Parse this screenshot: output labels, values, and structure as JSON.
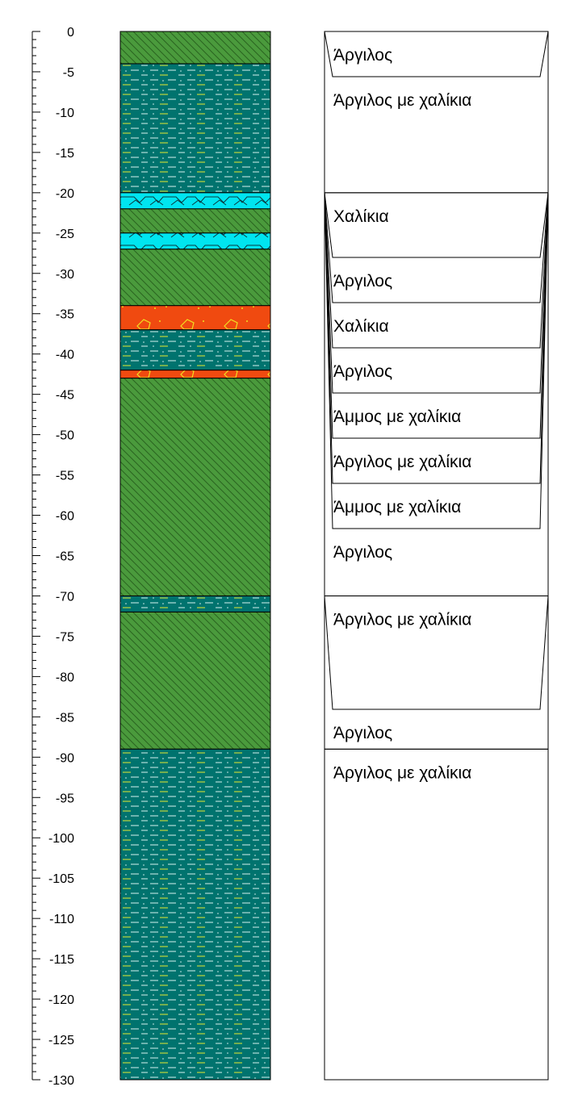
{
  "chart_data": {
    "type": "borehole-log",
    "depth_axis": {
      "min": -130,
      "max": 0,
      "major_step": 5,
      "minor_step": 1
    },
    "layers": [
      {
        "top": 0,
        "bottom": -4,
        "pattern": "clay"
      },
      {
        "top": -4,
        "bottom": -20,
        "pattern": "clay-gravel"
      },
      {
        "top": -20,
        "bottom": -22,
        "pattern": "gravel"
      },
      {
        "top": -22,
        "bottom": -25,
        "pattern": "clay"
      },
      {
        "top": -25,
        "bottom": -27,
        "pattern": "gravel"
      },
      {
        "top": -27,
        "bottom": -34,
        "pattern": "clay"
      },
      {
        "top": -34,
        "bottom": -37,
        "pattern": "sand-gravel"
      },
      {
        "top": -37,
        "bottom": -42,
        "pattern": "clay-gravel"
      },
      {
        "top": -42,
        "bottom": -43,
        "pattern": "sand-gravel"
      },
      {
        "top": -43,
        "bottom": -70,
        "pattern": "clay"
      },
      {
        "top": -70,
        "bottom": -72,
        "pattern": "clay-gravel"
      },
      {
        "top": -72,
        "bottom": -89,
        "pattern": "clay"
      },
      {
        "top": -89,
        "bottom": -130,
        "pattern": "clay-gravel"
      }
    ],
    "descriptions": [
      {
        "text": "Άργιλος",
        "layer": 0,
        "row": 0,
        "group": 0
      },
      {
        "text": "Άργιλος με χαλίκια",
        "layer": 1,
        "row": 1,
        "group": 0
      },
      {
        "text": "Χαλίκια",
        "layer": 2,
        "row": 4,
        "group": 1
      },
      {
        "text": "Άργιλος",
        "layer": 3,
        "row": 5,
        "group": 1
      },
      {
        "text": "Χαλίκια",
        "layer": 4,
        "row": 6,
        "group": 1
      },
      {
        "text": "Άργιλος",
        "layer": 5,
        "row": 7,
        "group": 1
      },
      {
        "text": "Άμμος με χαλίκια",
        "layer": 6,
        "row": 8,
        "group": 1
      },
      {
        "text": "Άργιλος με χαλίκια",
        "layer": 7,
        "row": 9,
        "group": 1
      },
      {
        "text": "Άμμος με χαλίκια",
        "layer": 8,
        "row": 10,
        "group": 1
      },
      {
        "text": "Άργιλος",
        "layer": 9,
        "row": 11,
        "group": 1
      },
      {
        "text": "Άργιλος με χαλίκια",
        "layer": 10,
        "row": 14,
        "group": 2
      },
      {
        "text": "Άργιλος",
        "layer": 11,
        "row": 15,
        "group": 2
      },
      {
        "text": "Άργιλος με χαλίκια",
        "layer": 12,
        "row": 18,
        "group": 3
      }
    ],
    "groups": [
      {
        "top": 0,
        "bottom": -20
      },
      {
        "top": -20,
        "bottom": -70
      },
      {
        "top": -70,
        "bottom": -89
      },
      {
        "top": -89,
        "bottom": -130
      }
    ]
  },
  "colors": {
    "clay": "#4a9a3c",
    "clay_hatch": "#2a6420",
    "clay_gravel": "#00736e",
    "clay_gravel_dash_white": "#d8f0ee",
    "clay_gravel_dash_yellow": "#e8e830",
    "gravel": "#00e5f0",
    "sand_gravel": "#f04a10",
    "sand_gravel_mark": "#f0e020",
    "outline": "#000000"
  }
}
